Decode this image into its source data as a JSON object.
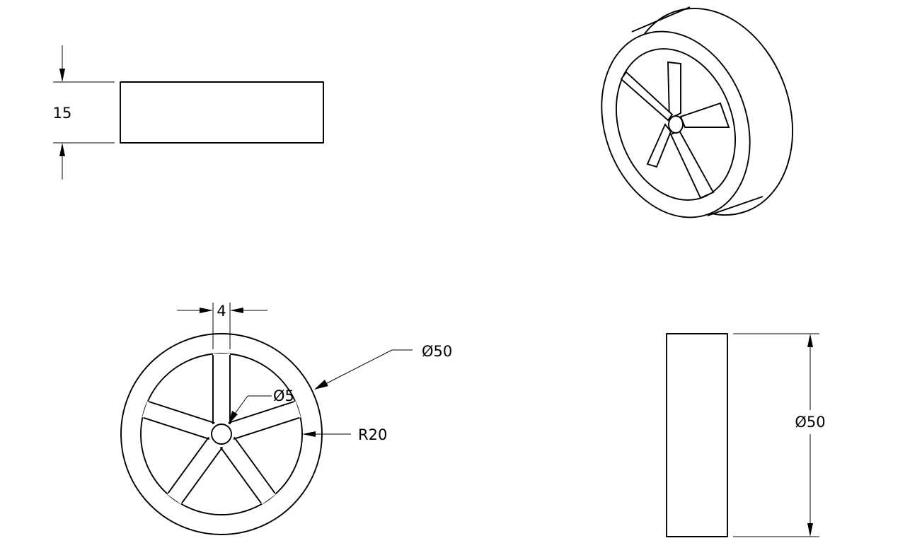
{
  "views": {
    "top": {
      "dimension": "15"
    },
    "isometric": {},
    "front": {
      "spoke_width": "4",
      "outer_diameter": "Ø50",
      "hub_diameter": "Ø5",
      "rim_inner_radius": "R20"
    },
    "side": {
      "dimension": "Ø50"
    }
  },
  "colors": {
    "line": "#000000",
    "background": "#ffffff"
  }
}
